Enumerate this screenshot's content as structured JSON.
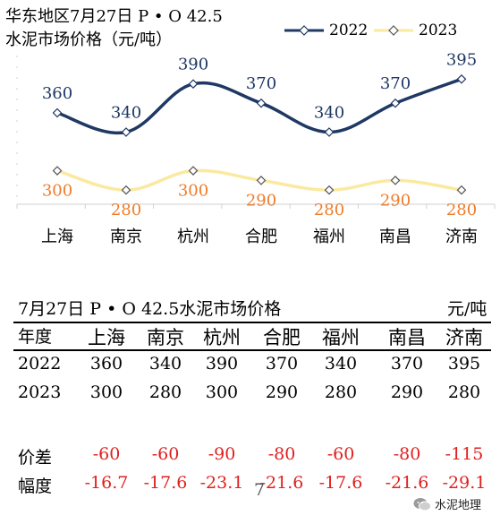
{
  "chart_data": {
    "type": "line",
    "title": "华东地区7月27日  P • O 42.5",
    "subtitle": "水泥市场价格（元/吨）",
    "categories": [
      "上海",
      "南京",
      "杭州",
      "合肥",
      "福州",
      "南昌",
      "济南"
    ],
    "series": [
      {
        "name": "2022",
        "values": [
          360,
          340,
          390,
          370,
          340,
          370,
          395
        ],
        "color": "#1f3864"
      },
      {
        "name": "2023",
        "values": [
          300,
          280,
          300,
          290,
          280,
          290,
          280
        ],
        "color": "#fbe9a0",
        "label_color": "#ee7d2b"
      }
    ],
    "legend_position": "top-right",
    "grid": false,
    "y_axis_visible": false
  },
  "table": {
    "title": "7月27日 P • O 42.5水泥市场价格",
    "unit": "元/吨",
    "header_label": "年度",
    "columns": [
      "上海",
      "南京",
      "杭州",
      "合肥",
      "福州",
      "南昌",
      "济南"
    ],
    "rows": [
      {
        "label": "2022",
        "values": [
          "360",
          "340",
          "390",
          "370",
          "340",
          "370",
          "395"
        ]
      },
      {
        "label": "2023",
        "values": [
          "300",
          "280",
          "300",
          "290",
          "280",
          "290",
          "280"
        ]
      },
      {
        "label": "价差",
        "values": [
          "-60",
          "-60",
          "-90",
          "-80",
          "-60",
          "-80",
          "-115"
        ]
      },
      {
        "label": "幅度",
        "values": [
          "-16.7",
          "-17.6",
          "-23.1",
          "-21.6",
          "-17.6",
          "-21.6",
          "-29.1"
        ]
      }
    ]
  },
  "watermark": {
    "text": "水泥地理",
    "icon": "wechat-icon"
  },
  "stray_mark": "7"
}
